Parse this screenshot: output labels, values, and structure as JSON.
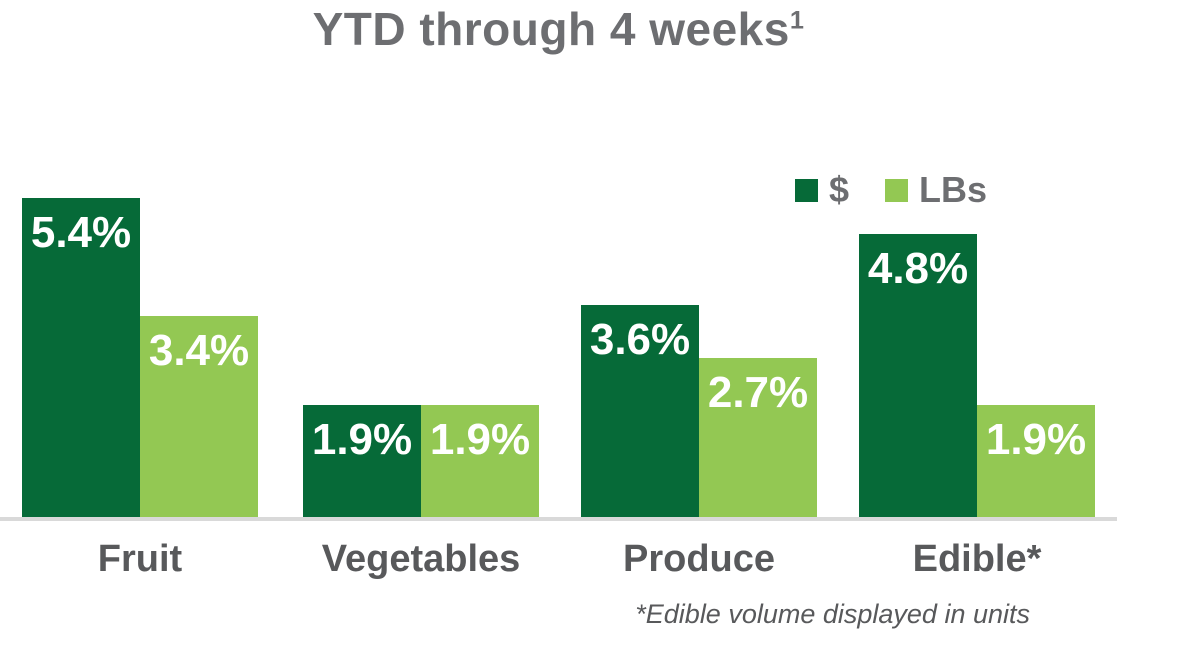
{
  "title": "YTD through 4 weeks",
  "title_superscript": "1",
  "legend": {
    "items": [
      {
        "label": "$",
        "color": "#066a38"
      },
      {
        "label": "LBs",
        "color": "#93c853"
      }
    ]
  },
  "footnote": "*Edible volume displayed in units",
  "colors": {
    "dollar_green": "#066a38",
    "lbs_green": "#93c853",
    "title_gray": "#6d6e71",
    "category_gray": "#58595b",
    "axis_gray": "#d9d9d9",
    "value_label_white": "#ffffff"
  },
  "chart_data": {
    "type": "bar",
    "title": "YTD through 4 weeks¹",
    "categories": [
      "Fruit",
      "Vegetables",
      "Produce",
      "Edible*"
    ],
    "series": [
      {
        "key": "dollar",
        "name": "$",
        "color": "#066a38",
        "values": [
          5.4,
          1.9,
          3.6,
          4.8
        ],
        "labels": [
          "5.4%",
          "1.9%",
          "3.6%",
          "4.8%"
        ]
      },
      {
        "key": "lbs",
        "name": "LBs",
        "color": "#93c853",
        "values": [
          3.4,
          1.9,
          2.7,
          1.9
        ],
        "labels": [
          "3.4%",
          "1.9%",
          "2.7%",
          "1.9%"
        ]
      }
    ],
    "unit": "percent",
    "ylim": [
      0,
      5.5
    ],
    "grid": false,
    "axis_line": "bottom-only",
    "legend_position": "top-right",
    "value_labels": "inside-top",
    "footnote": "*Edible volume displayed in units"
  }
}
